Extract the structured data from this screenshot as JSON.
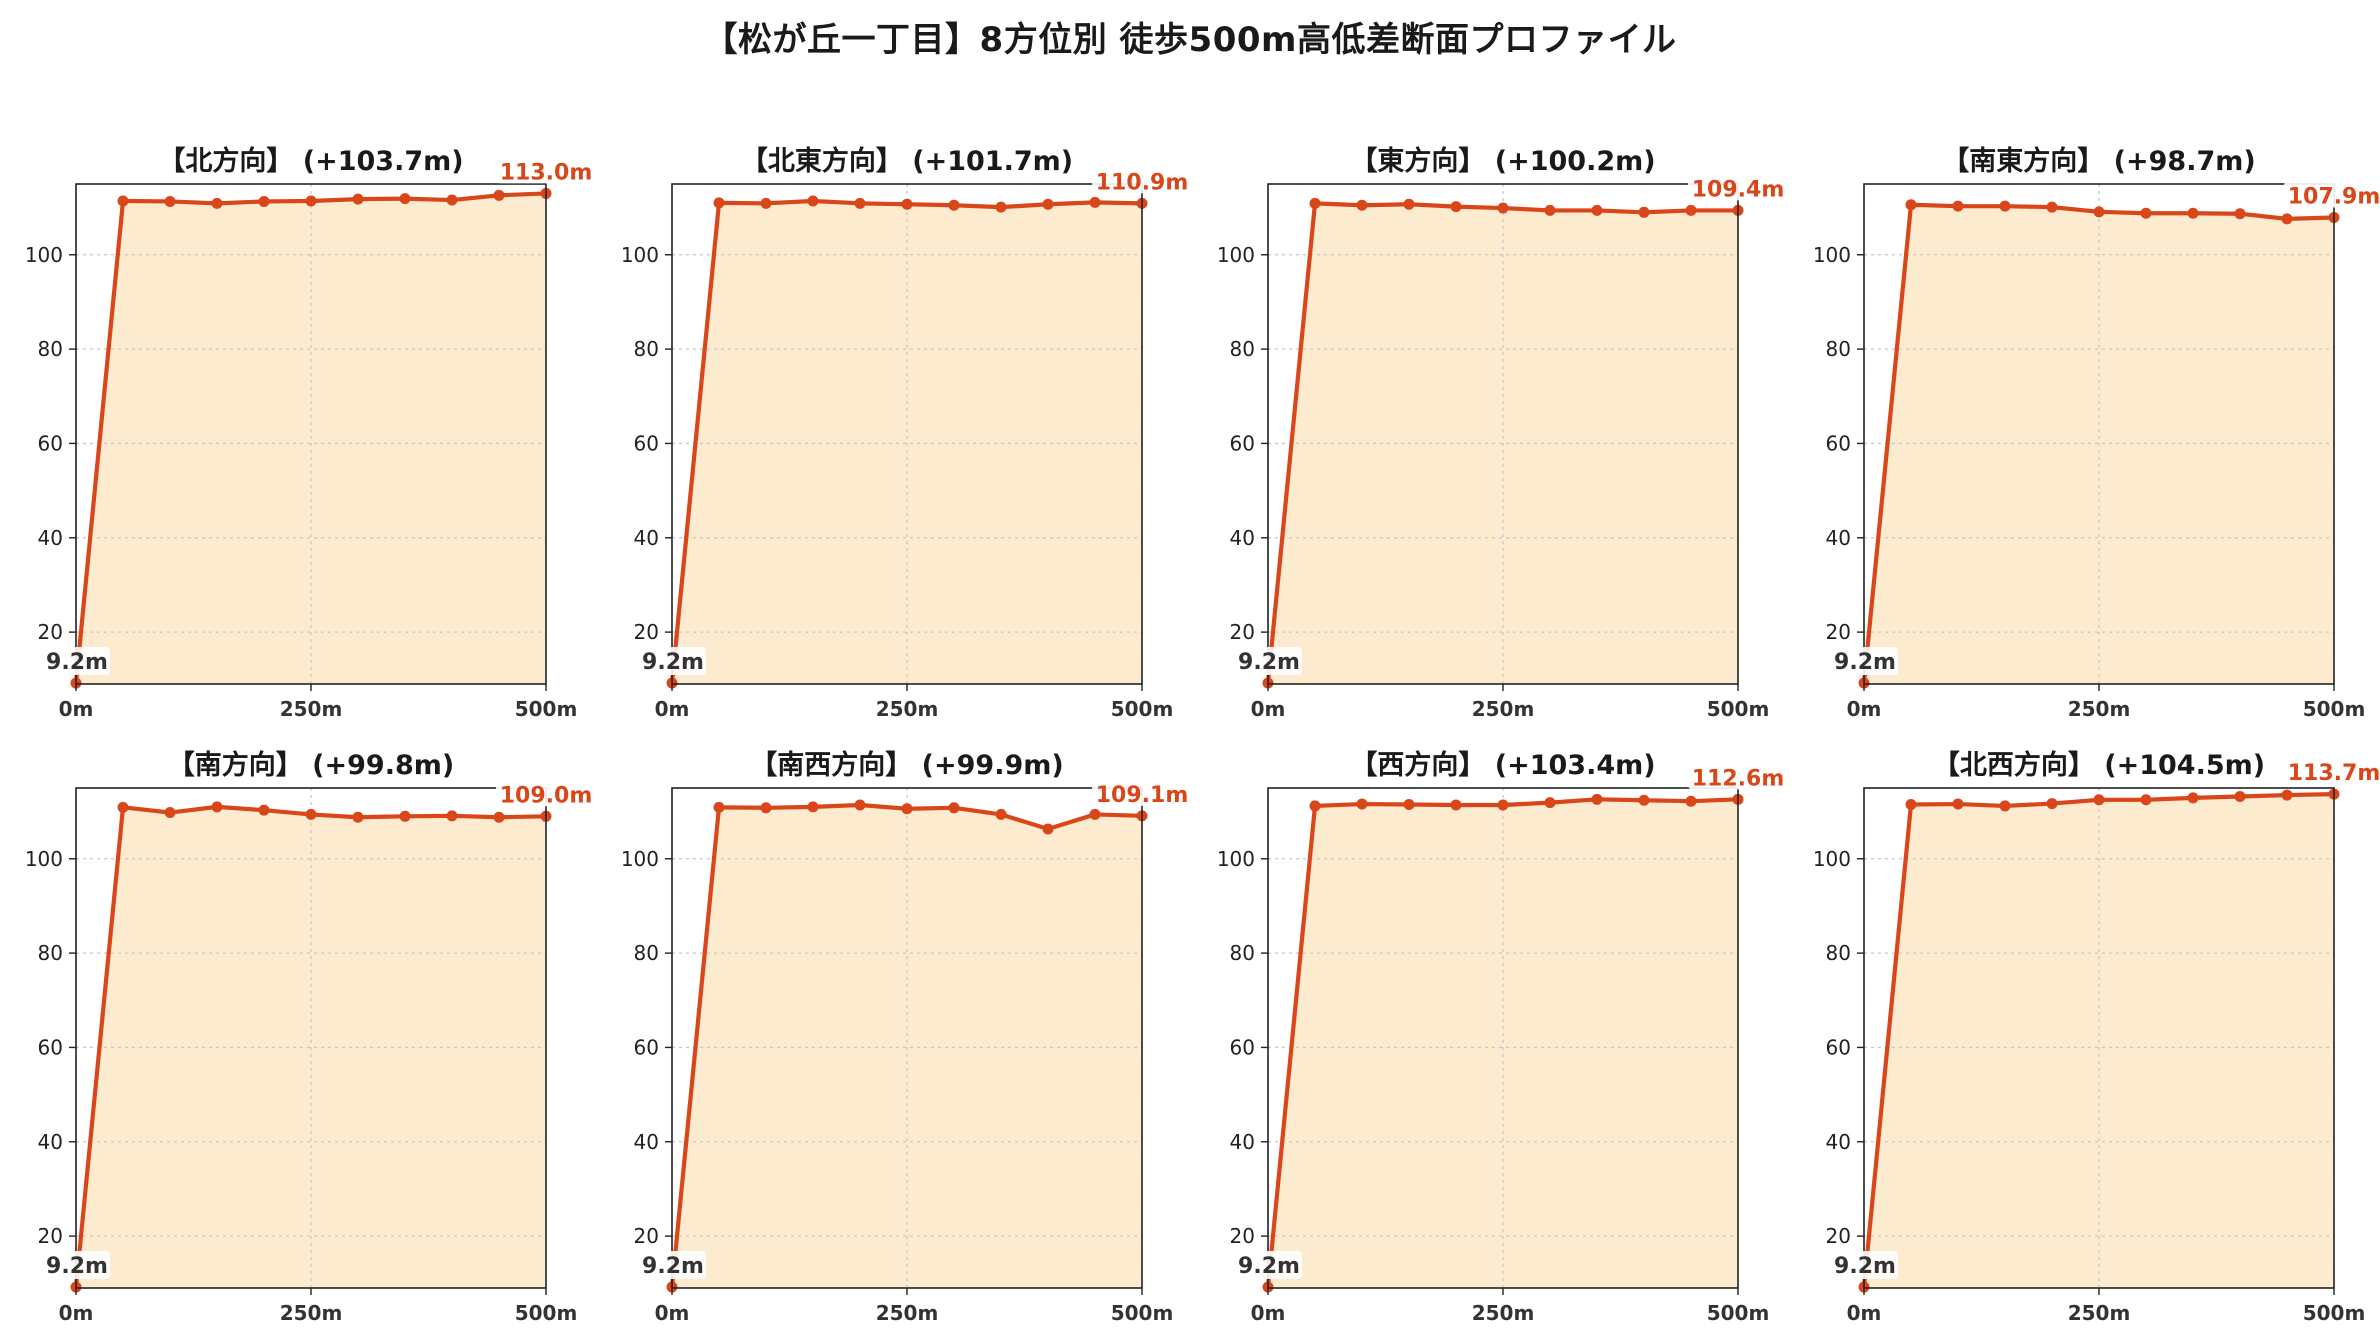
{
  "figure_title": "【松が丘一丁目】8方位別 徒歩500m高低差断面プロファイル",
  "colors": {
    "line": "#d9461a",
    "area": "#fdebd0",
    "start_label": "#333333",
    "end_label": "#d9461a"
  },
  "chart_data": [
    {
      "type": "area",
      "title": "【北方向】 (+103.7m)",
      "x": [
        0,
        50,
        100,
        150,
        200,
        250,
        300,
        350,
        400,
        450,
        500
      ],
      "y": [
        9.2,
        111.4,
        111.3,
        110.9,
        111.3,
        111.4,
        111.8,
        111.9,
        111.6,
        112.6,
        113.0
      ],
      "xlim": [
        0,
        500
      ],
      "ylim": [
        9,
        115
      ],
      "xticks": [
        0,
        250,
        500
      ],
      "xtick_labels": [
        "0m",
        "250m",
        "500m"
      ],
      "yticks": [
        20,
        40,
        60,
        80,
        100
      ],
      "ytick_labels": [
        "20",
        "40",
        "60",
        "80",
        "100"
      ],
      "grid": true,
      "start_label": "9.2m",
      "end_label": "113.0m"
    },
    {
      "type": "area",
      "title": "【北東方向】 (+101.7m)",
      "x": [
        0,
        50,
        100,
        150,
        200,
        250,
        300,
        350,
        400,
        450,
        500
      ],
      "y": [
        9.2,
        111.0,
        110.9,
        111.4,
        110.9,
        110.7,
        110.5,
        110.1,
        110.7,
        111.1,
        110.9
      ],
      "xlim": [
        0,
        500
      ],
      "ylim": [
        9,
        115
      ],
      "xticks": [
        0,
        250,
        500
      ],
      "xtick_labels": [
        "0m",
        "250m",
        "500m"
      ],
      "yticks": [
        20,
        40,
        60,
        80,
        100
      ],
      "ytick_labels": [
        "20",
        "40",
        "60",
        "80",
        "100"
      ],
      "grid": true,
      "start_label": "9.2m",
      "end_label": "110.9m"
    },
    {
      "type": "area",
      "title": "【東方向】 (+100.2m)",
      "x": [
        0,
        50,
        100,
        150,
        200,
        250,
        300,
        350,
        400,
        450,
        500
      ],
      "y": [
        9.2,
        110.9,
        110.5,
        110.7,
        110.2,
        109.9,
        109.4,
        109.4,
        109.0,
        109.4,
        109.4
      ],
      "xlim": [
        0,
        500
      ],
      "ylim": [
        9,
        115
      ],
      "xticks": [
        0,
        250,
        500
      ],
      "xtick_labels": [
        "0m",
        "250m",
        "500m"
      ],
      "yticks": [
        20,
        40,
        60,
        80,
        100
      ],
      "ytick_labels": [
        "20",
        "40",
        "60",
        "80",
        "100"
      ],
      "grid": true,
      "start_label": "9.2m",
      "end_label": "109.4m"
    },
    {
      "type": "area",
      "title": "【南東方向】 (+98.7m)",
      "x": [
        0,
        50,
        100,
        150,
        200,
        250,
        300,
        350,
        400,
        450,
        500
      ],
      "y": [
        9.2,
        110.6,
        110.3,
        110.3,
        110.1,
        109.1,
        108.8,
        108.8,
        108.7,
        107.6,
        107.9
      ],
      "xlim": [
        0,
        500
      ],
      "ylim": [
        9,
        115
      ],
      "xticks": [
        0,
        250,
        500
      ],
      "xtick_labels": [
        "0m",
        "250m",
        "500m"
      ],
      "yticks": [
        20,
        40,
        60,
        80,
        100
      ],
      "ytick_labels": [
        "20",
        "40",
        "60",
        "80",
        "100"
      ],
      "grid": true,
      "start_label": "9.2m",
      "end_label": "107.9m"
    },
    {
      "type": "area",
      "title": "【南方向】 (+99.8m)",
      "x": [
        0,
        50,
        100,
        150,
        200,
        250,
        300,
        350,
        400,
        450,
        500
      ],
      "y": [
        9.2,
        110.9,
        109.8,
        111.0,
        110.3,
        109.4,
        108.8,
        109.0,
        109.1,
        108.8,
        109.0
      ],
      "xlim": [
        0,
        500
      ],
      "ylim": [
        9,
        115
      ],
      "xticks": [
        0,
        250,
        500
      ],
      "xtick_labels": [
        "0m",
        "250m",
        "500m"
      ],
      "yticks": [
        20,
        40,
        60,
        80,
        100
      ],
      "ytick_labels": [
        "20",
        "40",
        "60",
        "80",
        "100"
      ],
      "grid": true,
      "start_label": "9.2m",
      "end_label": "109.0m"
    },
    {
      "type": "area",
      "title": "【南西方向】 (+99.9m)",
      "x": [
        0,
        50,
        100,
        150,
        200,
        250,
        300,
        350,
        400,
        450,
        500
      ],
      "y": [
        9.2,
        110.9,
        110.8,
        111.0,
        111.4,
        110.6,
        110.8,
        109.4,
        106.3,
        109.4,
        109.1
      ],
      "xlim": [
        0,
        500
      ],
      "ylim": [
        9,
        115
      ],
      "xticks": [
        0,
        250,
        500
      ],
      "xtick_labels": [
        "0m",
        "250m",
        "500m"
      ],
      "yticks": [
        20,
        40,
        60,
        80,
        100
      ],
      "ytick_labels": [
        "20",
        "40",
        "60",
        "80",
        "100"
      ],
      "grid": true,
      "start_label": "9.2m",
      "end_label": "109.1m"
    },
    {
      "type": "area",
      "title": "【西方向】 (+103.4m)",
      "x": [
        0,
        50,
        100,
        150,
        200,
        250,
        300,
        350,
        400,
        450,
        500
      ],
      "y": [
        9.2,
        111.2,
        111.6,
        111.5,
        111.4,
        111.4,
        111.9,
        112.6,
        112.4,
        112.2,
        112.6
      ],
      "xlim": [
        0,
        500
      ],
      "ylim": [
        9,
        115
      ],
      "xticks": [
        0,
        250,
        500
      ],
      "xtick_labels": [
        "0m",
        "250m",
        "500m"
      ],
      "yticks": [
        20,
        40,
        60,
        80,
        100
      ],
      "ytick_labels": [
        "20",
        "40",
        "60",
        "80",
        "100"
      ],
      "grid": true,
      "start_label": "9.2m",
      "end_label": "112.6m"
    },
    {
      "type": "area",
      "title": "【北西方向】 (+104.5m)",
      "x": [
        0,
        50,
        100,
        150,
        200,
        250,
        300,
        350,
        400,
        450,
        500
      ],
      "y": [
        9.2,
        111.5,
        111.6,
        111.2,
        111.7,
        112.5,
        112.5,
        112.9,
        113.2,
        113.5,
        113.7
      ],
      "xlim": [
        0,
        500
      ],
      "ylim": [
        9,
        115
      ],
      "xticks": [
        0,
        250,
        500
      ],
      "xtick_labels": [
        "0m",
        "250m",
        "500m"
      ],
      "yticks": [
        20,
        40,
        60,
        80,
        100
      ],
      "ytick_labels": [
        "20",
        "40",
        "60",
        "80",
        "100"
      ],
      "grid": true,
      "start_label": "9.2m",
      "end_label": "113.7m"
    }
  ]
}
